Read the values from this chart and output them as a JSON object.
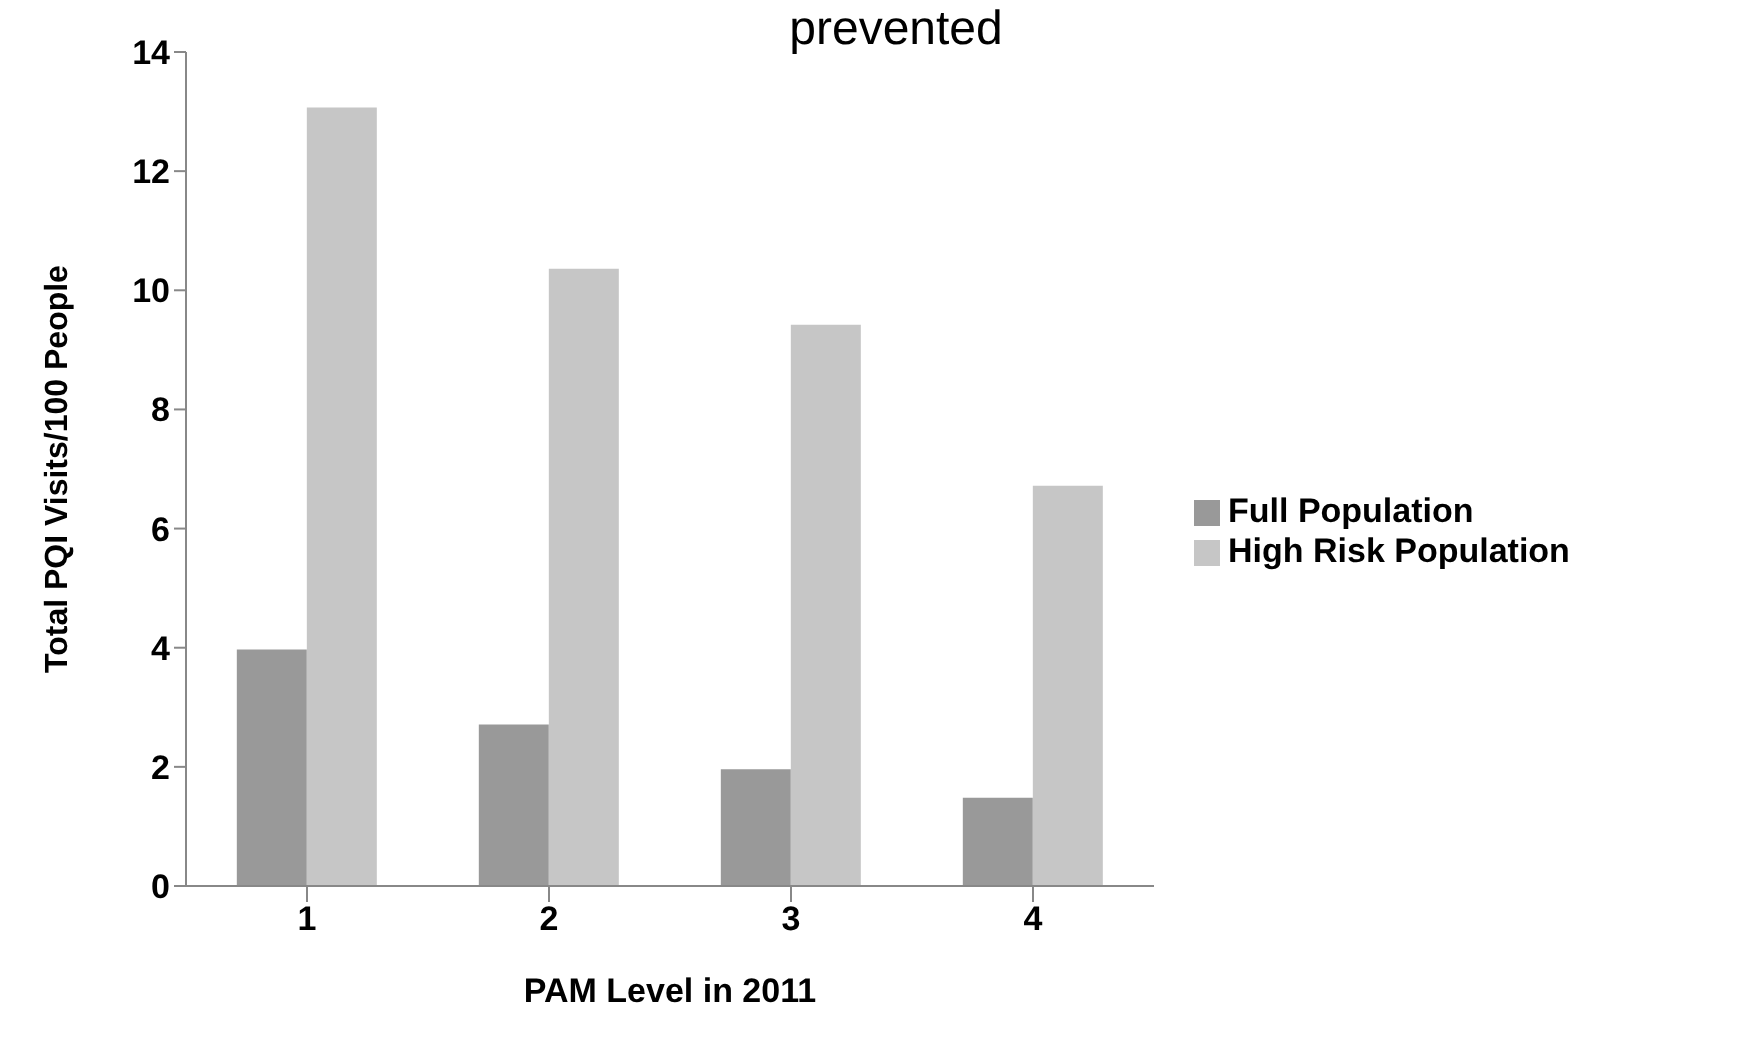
{
  "chart_data": {
    "type": "bar",
    "title": "prevented",
    "xlabel": "PAM Level in 2011",
    "ylabel": "Total PQI Visits/100 People",
    "categories": [
      "1",
      "2",
      "3",
      "4"
    ],
    "series": [
      {
        "name": "Full Population",
        "color": "#999999",
        "values": [
          3.97,
          2.71,
          1.96,
          1.48
        ]
      },
      {
        "name": "High Risk Population",
        "color": "#c6c6c6",
        "values": [
          13.07,
          10.36,
          9.42,
          6.72
        ]
      }
    ],
    "ylim": [
      0,
      14
    ],
    "yticks": [
      0,
      2,
      4,
      6,
      8,
      10,
      12,
      14
    ],
    "grid": false,
    "legend": "right"
  }
}
